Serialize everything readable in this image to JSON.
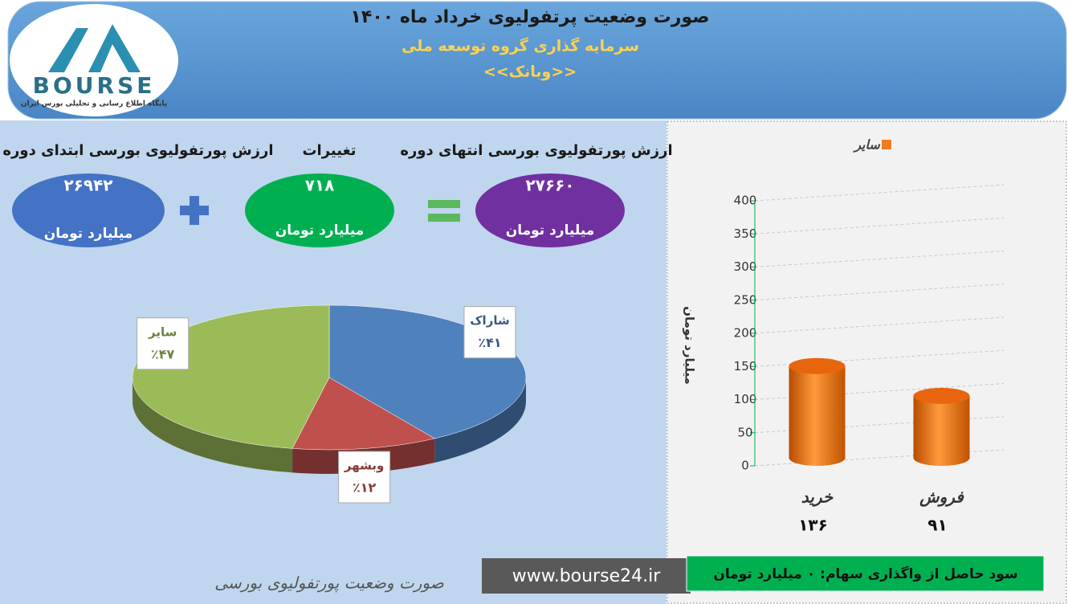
{
  "header": {
    "title": "صورت وضعیت پرتفولیوی خرداد ماه ۱۴۰۰",
    "subtitle": "سرمایه گذاری گروه توسعه ملی",
    "symbol": "<<وبانک>>"
  },
  "logo": {
    "text": "BOURSE",
    "caption": "پایگاه اطلاع رسانی و تحلیلی بورس ایران"
  },
  "summary": {
    "start": {
      "label": "ارزش پورتفولیوی بورسی ابتدای دوره",
      "value": "۲۶۹۴۲",
      "unit": "میلیارد تومان"
    },
    "change": {
      "label": "تغییرات",
      "value": "۷۱۸",
      "unit": "میلیارد تومان"
    },
    "end": {
      "label": "ارزش پورتفولیوی بورسی انتهای دوره",
      "value": "۲۷۶۶۰",
      "unit": "میلیارد تومان"
    }
  },
  "chart_data": [
    {
      "type": "pie",
      "categories": [
        "شاراک",
        "وبشهر",
        "سایر"
      ],
      "values": [
        41,
        12,
        47
      ],
      "value_labels": [
        "٪۴۱",
        "٪۱۲",
        "٪۴۷"
      ],
      "colors": [
        "#4f81bd",
        "#c0504d",
        "#9bbb59"
      ]
    },
    {
      "type": "bar",
      "categories": [
        "خرید",
        "فروش"
      ],
      "series": [
        {
          "name": "سایر",
          "color": "#f07c1e",
          "values": [
            136,
            91
          ],
          "value_labels": [
            "۱۳۶",
            "۹۱"
          ]
        }
      ],
      "y_label": "میلیارد تومان",
      "ylim": [
        0,
        400
      ],
      "yticks": [
        0,
        50,
        100,
        150,
        200,
        250,
        300,
        350,
        400
      ],
      "grid": true
    }
  ],
  "footer": {
    "caption": "صورت وضعیت پورتفولیوی بورسی",
    "website": "www.bourse24.ir",
    "profit": "سود حاصل از واگذاری سهام: ۰ میلیارد تومان"
  }
}
